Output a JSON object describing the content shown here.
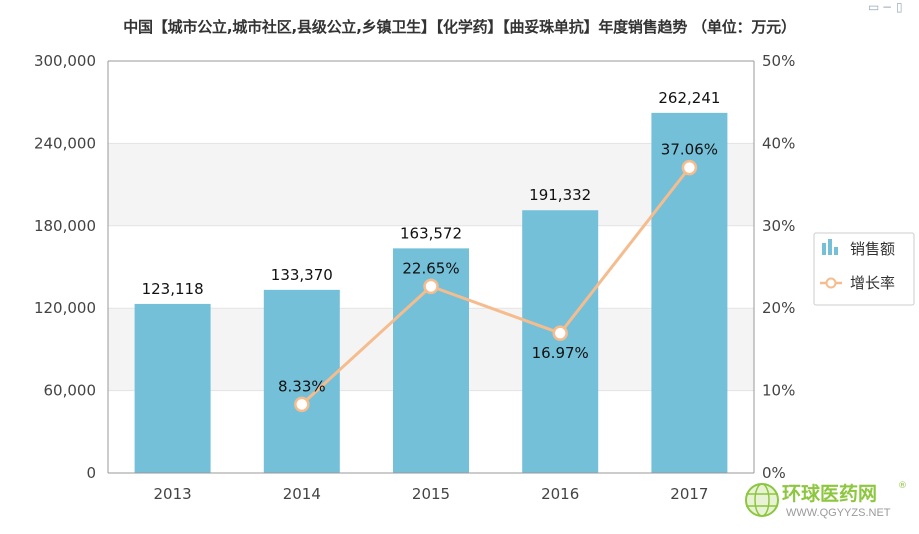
{
  "chart_data": {
    "type": "bar",
    "title": "中国【城市公立,城市社区,县级公立,乡镇卫生】【化学药】【曲妥珠单抗】年度销售趋势 （单位：万元）",
    "categories": [
      "2013",
      "2014",
      "2015",
      "2016",
      "2017"
    ],
    "series": [
      {
        "name": "销售额",
        "type": "bar",
        "axis": "left",
        "values": [
          123118,
          133370,
          163572,
          191332,
          262241
        ],
        "labels": [
          "123,118",
          "133,370",
          "163,572",
          "191,332",
          "262,241"
        ],
        "color": "#75c0d9"
      },
      {
        "name": "增长率",
        "type": "line",
        "axis": "right",
        "values": [
          null,
          8.33,
          22.65,
          16.97,
          37.06
        ],
        "labels": [
          "",
          "8.33%",
          "22.65%",
          "16.97%",
          "37.06%"
        ],
        "color": "#f5bc8e"
      }
    ],
    "y_left": {
      "min": 0,
      "max": 300000,
      "ticks": [
        0,
        60000,
        120000,
        180000,
        240000,
        300000
      ],
      "tick_labels": [
        "0",
        "60,000",
        "120,000",
        "180,000",
        "240,000",
        "300,000"
      ]
    },
    "y_right": {
      "min": 0,
      "max": 50,
      "ticks": [
        0,
        10,
        20,
        30,
        40,
        50
      ],
      "tick_labels": [
        "0%",
        "10%",
        "20%",
        "30%",
        "40%",
        "50%"
      ]
    },
    "legend": {
      "position": "right"
    },
    "grid": true,
    "band_color": "#f4f4f4"
  },
  "watermark": {
    "cn": "环球医药网",
    "en": "WWW.QGYYZS.NET",
    "reg": "®"
  }
}
